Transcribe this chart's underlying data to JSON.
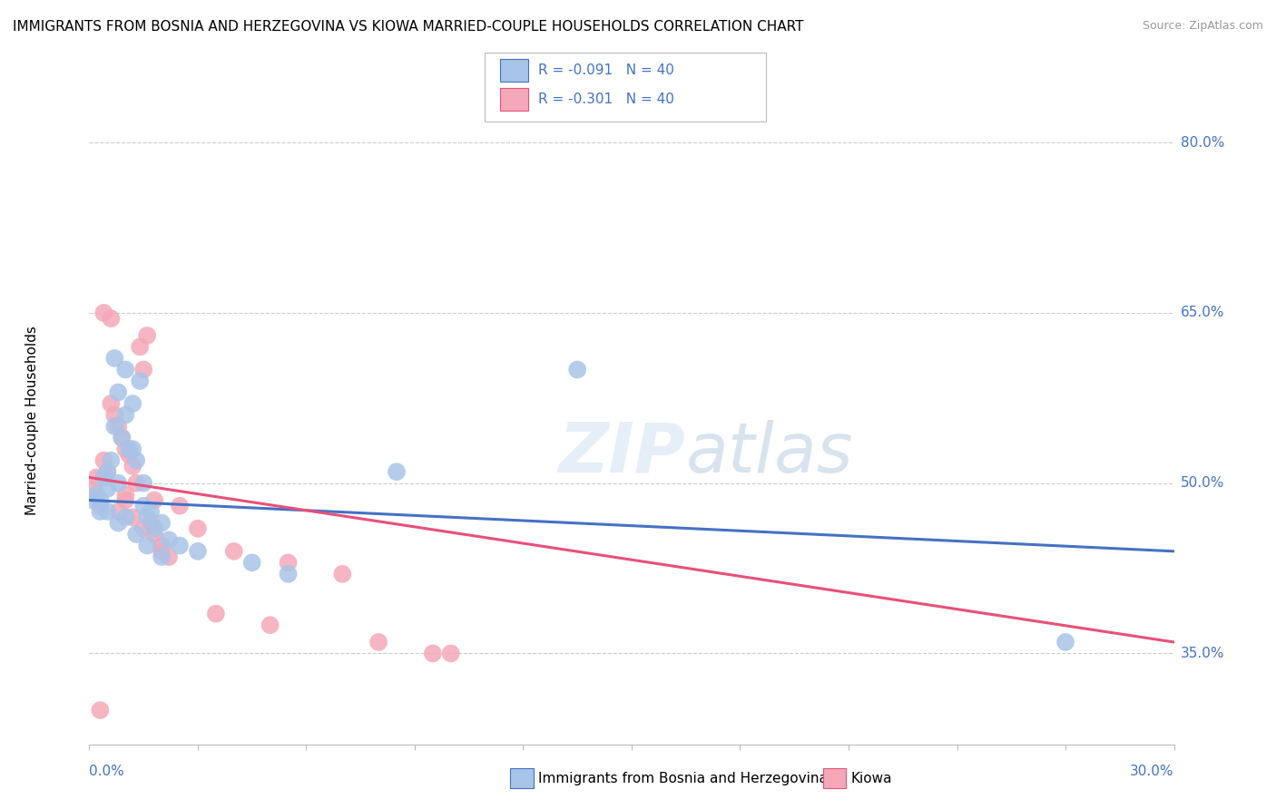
{
  "title": "IMMIGRANTS FROM BOSNIA AND HERZEGOVINA VS KIOWA MARRIED-COUPLE HOUSEHOLDS CORRELATION CHART",
  "source": "Source: ZipAtlas.com",
  "ylabel_ticks": [
    35.0,
    50.0,
    65.0,
    80.0
  ],
  "xmin": 0.0,
  "xmax": 30.0,
  "ymin": 27.0,
  "ymax": 84.0,
  "blue_R": -0.091,
  "blue_N": 40,
  "pink_R": -0.301,
  "pink_N": 40,
  "blue_color": "#a8c4e8",
  "pink_color": "#f4a8b8",
  "blue_line_color": "#4472c4",
  "pink_line_color": "#e8507a",
  "legend_label_blue": "Immigrants from Bosnia and Herzegovina",
  "legend_label_pink": "Kiowa",
  "blue_scatter_x": [
    0.1,
    0.2,
    0.3,
    0.4,
    0.5,
    0.5,
    0.6,
    0.7,
    0.7,
    0.8,
    0.8,
    0.9,
    1.0,
    1.0,
    1.1,
    1.2,
    1.2,
    1.3,
    1.4,
    1.5,
    1.5,
    1.6,
    1.7,
    1.8,
    2.0,
    2.2,
    2.5,
    3.0,
    4.5,
    5.5,
    0.3,
    0.5,
    0.8,
    1.0,
    1.3,
    1.6,
    2.0,
    8.5,
    13.5,
    27.0
  ],
  "blue_scatter_y": [
    48.5,
    49.0,
    47.5,
    50.5,
    49.5,
    51.0,
    52.0,
    61.0,
    55.0,
    58.0,
    50.0,
    54.0,
    60.0,
    56.0,
    53.0,
    57.0,
    53.0,
    52.0,
    59.0,
    50.0,
    48.0,
    47.0,
    47.5,
    46.0,
    46.5,
    45.0,
    44.5,
    44.0,
    43.0,
    42.0,
    48.5,
    47.5,
    46.5,
    47.0,
    45.5,
    44.5,
    43.5,
    51.0,
    60.0,
    36.0
  ],
  "pink_scatter_x": [
    0.1,
    0.2,
    0.3,
    0.4,
    0.5,
    0.6,
    0.7,
    0.8,
    0.9,
    1.0,
    1.0,
    1.1,
    1.2,
    1.3,
    1.4,
    1.5,
    1.6,
    1.7,
    1.8,
    2.0,
    2.2,
    2.5,
    3.0,
    4.0,
    5.5,
    7.0,
    9.5,
    0.4,
    0.6,
    0.8,
    1.0,
    1.2,
    1.5,
    2.0,
    3.5,
    5.0,
    8.0,
    10.0,
    1.8,
    0.3
  ],
  "pink_scatter_y": [
    49.5,
    50.5,
    48.0,
    52.0,
    51.0,
    57.0,
    56.0,
    55.0,
    54.0,
    53.0,
    48.5,
    52.5,
    51.5,
    50.0,
    62.0,
    60.0,
    63.0,
    46.5,
    45.5,
    44.5,
    43.5,
    48.0,
    46.0,
    44.0,
    43.0,
    42.0,
    35.0,
    65.0,
    64.5,
    47.5,
    49.0,
    47.0,
    46.0,
    44.0,
    38.5,
    37.5,
    36.0,
    35.0,
    48.5,
    30.0
  ]
}
